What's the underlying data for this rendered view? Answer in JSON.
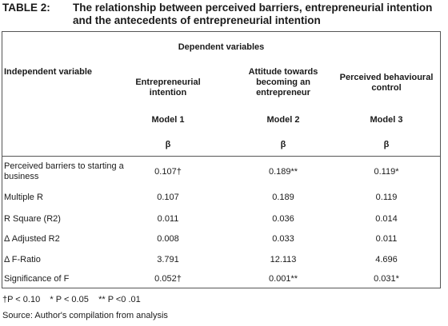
{
  "caption": {
    "label": "TABLE 2:",
    "text": "The relationship between perceived barriers, entrepreneurial intention and the antecedents of entrepreneurial intention"
  },
  "table": {
    "dependent_header": "Dependent variables",
    "independent_header": "Independent variable",
    "columns": [
      {
        "name": "Entrepreneurial intention",
        "model": "Model 1",
        "coef": "β"
      },
      {
        "name": "Attitude towards becoming an entrepreneur",
        "model": "Model 2",
        "coef": "β"
      },
      {
        "name": "Perceived behavioural control",
        "model": "Model 3",
        "coef": "β"
      }
    ],
    "rows": [
      {
        "label": "Perceived barriers to starting a business",
        "values": [
          "0.107†",
          "0.189**",
          "0.119*"
        ]
      },
      {
        "label": "Multiple R",
        "values": [
          "0.107",
          "0.189",
          "0.119"
        ]
      },
      {
        "label": "R Square (R2)",
        "values": [
          "0.011",
          "0.036",
          "0.014"
        ]
      },
      {
        "label": "Δ Adjusted R2",
        "values": [
          "0.008",
          "0.033",
          "0.011"
        ]
      },
      {
        "label": "Δ F-Ratio",
        "values": [
          "3.791",
          "12.113",
          "4.696"
        ]
      },
      {
        "label": "Significance of F",
        "values": [
          "0.052†",
          "0.001**",
          "0.031*"
        ]
      }
    ]
  },
  "footnotes": {
    "significance": "†P < 0.10    * P < 0.05    ** P <0 .01",
    "source": "Source: Author's compilation from analysis"
  }
}
